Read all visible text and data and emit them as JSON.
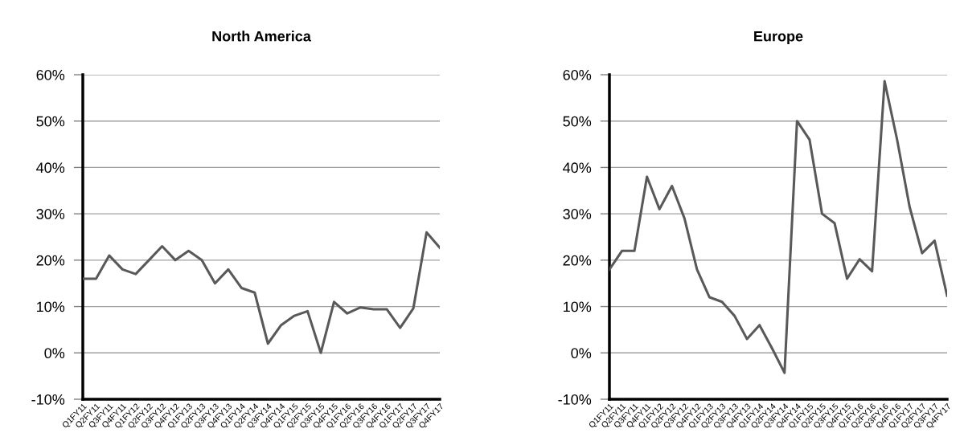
{
  "chart_data": [
    {
      "type": "line",
      "title": "North America",
      "categories": [
        "Q1FY11",
        "Q2FY11",
        "Q3FY11",
        "Q4FY11",
        "Q1FY12",
        "Q2FY12",
        "Q3FY12",
        "Q4FY12",
        "Q1FY13",
        "Q2FY13",
        "Q3FY13",
        "Q4FY13",
        "Q1FY14",
        "Q2FY14",
        "Q3FY14",
        "Q4FY14",
        "Q1FY15",
        "Q2FY15",
        "Q3FY15",
        "Q4FY15",
        "Q1FY16",
        "Q2FY16",
        "Q3FY16",
        "Q4FY16",
        "Q1FY17",
        "Q2FY17",
        "Q3FY17",
        "Q4FY17"
      ],
      "series": [
        {
          "color": "#595959",
          "values": [
            16,
            16,
            21,
            18,
            17,
            20,
            23,
            20,
            22,
            20,
            15,
            18,
            14,
            13,
            2,
            6,
            8,
            9,
            0,
            11,
            8.5,
            9.8,
            9.4,
            9.4,
            5.4,
            9.6,
            26,
            22.7
          ]
        }
      ],
      "ylim": [
        -10,
        60
      ],
      "yticks": [
        {
          "value": -10,
          "label": "-10%"
        },
        {
          "value": 0,
          "label": "0%"
        },
        {
          "value": 10,
          "label": "10%"
        },
        {
          "value": 20,
          "label": "20%"
        },
        {
          "value": 30,
          "label": "30%"
        },
        {
          "value": 40,
          "label": "40%"
        },
        {
          "value": 50,
          "label": "50%"
        },
        {
          "value": 60,
          "label": "60%"
        }
      ],
      "grid": "y",
      "marker": "none",
      "line_style": "solid"
    },
    {
      "type": "line",
      "title": "Europe",
      "categories": [
        "Q1FY11",
        "Q2FY11",
        "Q3FY11",
        "Q4FY11",
        "Q1FY12",
        "Q2FY12",
        "Q3FY12",
        "Q4FY12",
        "Q1FY13",
        "Q2FY13",
        "Q3FY13",
        "Q4FY13",
        "Q1FY14",
        "Q2FY14",
        "Q3FY14",
        "Q4FY14",
        "Q1FY15",
        "Q2FY15",
        "Q3FY15",
        "Q4FY15",
        "Q1FY16",
        "Q2FY16",
        "Q3FY16",
        "Q4FY16",
        "Q1FY17",
        "Q2FY17",
        "Q3FY17",
        "Q4FY17"
      ],
      "series": [
        {
          "color": "#595959",
          "values": [
            18,
            22,
            22,
            38,
            31,
            36,
            29,
            18,
            12,
            11,
            8,
            3,
            6,
            1,
            -4.3,
            50,
            46,
            30,
            28,
            16,
            20.2,
            17.6,
            58.6,
            46,
            31.5,
            21.5,
            24.2,
            12.3
          ]
        }
      ],
      "ylim": [
        -10,
        60
      ],
      "yticks": [
        {
          "value": -10,
          "label": "-10%"
        },
        {
          "value": 0,
          "label": "0%"
        },
        {
          "value": 10,
          "label": "10%"
        },
        {
          "value": 20,
          "label": "20%"
        },
        {
          "value": 30,
          "label": "30%"
        },
        {
          "value": 40,
          "label": "40%"
        },
        {
          "value": 50,
          "label": "50%"
        },
        {
          "value": 60,
          "label": "60%"
        }
      ],
      "grid": "y",
      "marker": "none",
      "line_style": "solid"
    }
  ]
}
